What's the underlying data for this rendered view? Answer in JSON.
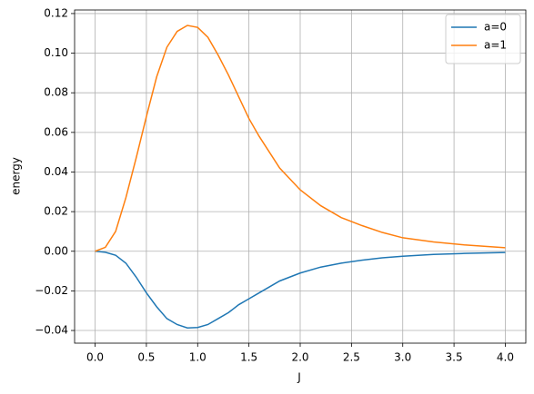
{
  "chart_data": {
    "type": "line",
    "xlabel": "J",
    "ylabel": "energy",
    "x": [
      0,
      0.1,
      0.2,
      0.3,
      0.4,
      0.5,
      0.6,
      0.7,
      0.8,
      0.9,
      1.0,
      1.1,
      1.2,
      1.3,
      1.4,
      1.5,
      1.6,
      1.8,
      2.0,
      2.2,
      2.4,
      2.6,
      2.8,
      3.0,
      3.3,
      3.6,
      4.0
    ],
    "series": [
      {
        "name": "a=0",
        "color": "#1f77b4",
        "values": [
          0,
          -0.0005,
          -0.002,
          -0.006,
          -0.013,
          -0.021,
          -0.028,
          -0.034,
          -0.037,
          -0.0387,
          -0.0385,
          -0.037,
          -0.034,
          -0.031,
          -0.027,
          -0.024,
          -0.021,
          -0.015,
          -0.011,
          -0.008,
          -0.006,
          -0.0045,
          -0.0033,
          -0.0025,
          -0.0016,
          -0.0011,
          -0.0006
        ]
      },
      {
        "name": "a=1",
        "color": "#ff7f0e",
        "values": [
          0,
          0.002,
          0.01,
          0.027,
          0.047,
          0.068,
          0.088,
          0.103,
          0.111,
          0.114,
          0.113,
          0.108,
          0.099,
          0.089,
          0.078,
          0.067,
          0.058,
          0.042,
          0.031,
          0.023,
          0.017,
          0.013,
          0.0095,
          0.0068,
          0.0047,
          0.0032,
          0.0018
        ]
      }
    ],
    "xlim": [
      -0.2,
      4.2
    ],
    "ylim": [
      -0.0464,
      0.1218
    ],
    "xticks": [
      {
        "value": 0,
        "label": "0.0"
      },
      {
        "value": 0.5,
        "label": "0.5"
      },
      {
        "value": 1,
        "label": "1.0"
      },
      {
        "value": 1.5,
        "label": "1.5"
      },
      {
        "value": 2,
        "label": "2.0"
      },
      {
        "value": 2.5,
        "label": "2.5"
      },
      {
        "value": 3,
        "label": "3.0"
      },
      {
        "value": 3.5,
        "label": "3.5"
      },
      {
        "value": 4,
        "label": "4.0"
      }
    ],
    "yticks": [
      {
        "value": -0.04,
        "label": "−0.04"
      },
      {
        "value": -0.02,
        "label": "−0.02"
      },
      {
        "value": 0,
        "label": "0.00"
      },
      {
        "value": 0.02,
        "label": "0.02"
      },
      {
        "value": 0.04,
        "label": "0.04"
      },
      {
        "value": 0.06,
        "label": "0.06"
      },
      {
        "value": 0.08,
        "label": "0.08"
      },
      {
        "value": 0.1,
        "label": "0.10"
      },
      {
        "value": 0.12,
        "label": "0.12"
      }
    ],
    "grid": true,
    "legend": "upper right"
  }
}
